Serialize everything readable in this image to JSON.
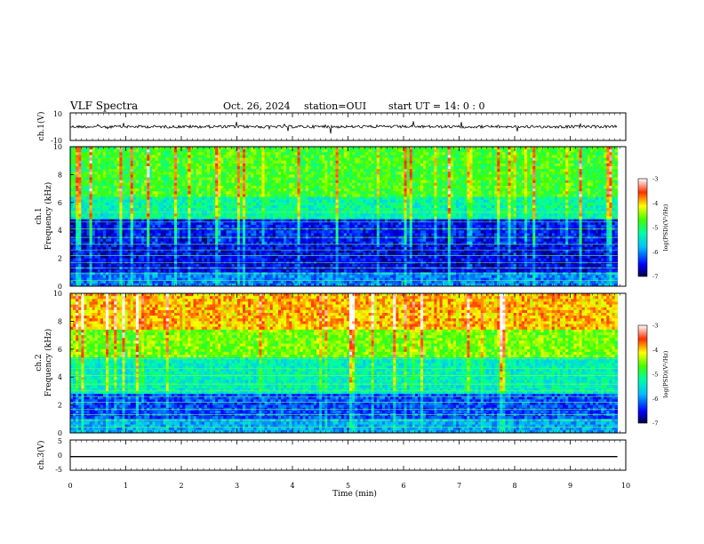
{
  "header": {
    "title": "VLF Spectra",
    "date": "Oct. 26, 2024",
    "station": "station=OUI",
    "start": "start  UT =   14: 0  : 0"
  },
  "chart_data": [
    {
      "type": "line",
      "panel": "ch1-waveform",
      "ylabel": "ch.1(V)",
      "yticks": [
        "10",
        "-10"
      ],
      "ylim": [
        -10,
        10
      ],
      "baseline": 0,
      "x_range": [
        0,
        9.85
      ],
      "color": "#000000"
    },
    {
      "type": "heatmap",
      "panel": "ch1-spectrogram",
      "ylabel": "ch.1\nFrequency (kHz)",
      "yticks": [
        0,
        2,
        4,
        6,
        8,
        10
      ],
      "ylim": [
        0,
        10
      ],
      "x_range": [
        0,
        9.85
      ],
      "colorbar": {
        "label": "log(PSD)(V²/Hz)",
        "range": [
          -7,
          -3
        ],
        "ticks": [
          "-3",
          "-4",
          "-5",
          "-6",
          "-7"
        ]
      },
      "description_levels": {
        "below_5kHz": -6.5,
        "5_to_7kHz": -5.2,
        "above_7kHz": -4.8
      }
    },
    {
      "type": "heatmap",
      "panel": "ch2-spectrogram",
      "ylabel": "ch.2\nFrequency (kHz)",
      "yticks": [
        0,
        2,
        4,
        6,
        8,
        10
      ],
      "ylim": [
        0,
        10
      ],
      "x_range": [
        0,
        9.85
      ],
      "colorbar": {
        "label": "log(PSD)(V²/Hz)",
        "range": [
          -7,
          -3
        ],
        "ticks": [
          "-3",
          "-4",
          "-5",
          "-6",
          "-7"
        ]
      },
      "description_levels": {
        "below_3kHz": -6.3,
        "3_to_6kHz": -5.4,
        "above_6kHz": -4.0
      }
    },
    {
      "type": "line",
      "panel": "ch3-waveform",
      "ylabel": "ch.3(V)",
      "yticks": [
        "5",
        "0",
        "-5"
      ],
      "ylim": [
        -5,
        5
      ],
      "values_constant": -0.5,
      "x_range": [
        0,
        9.85
      ],
      "color": "#000000"
    }
  ],
  "xaxis": {
    "label": "Time (min)",
    "ticks": [
      "0",
      "1",
      "2",
      "3",
      "4",
      "5",
      "6",
      "7",
      "8",
      "9",
      "10"
    ],
    "xlim": [
      0,
      10
    ]
  }
}
